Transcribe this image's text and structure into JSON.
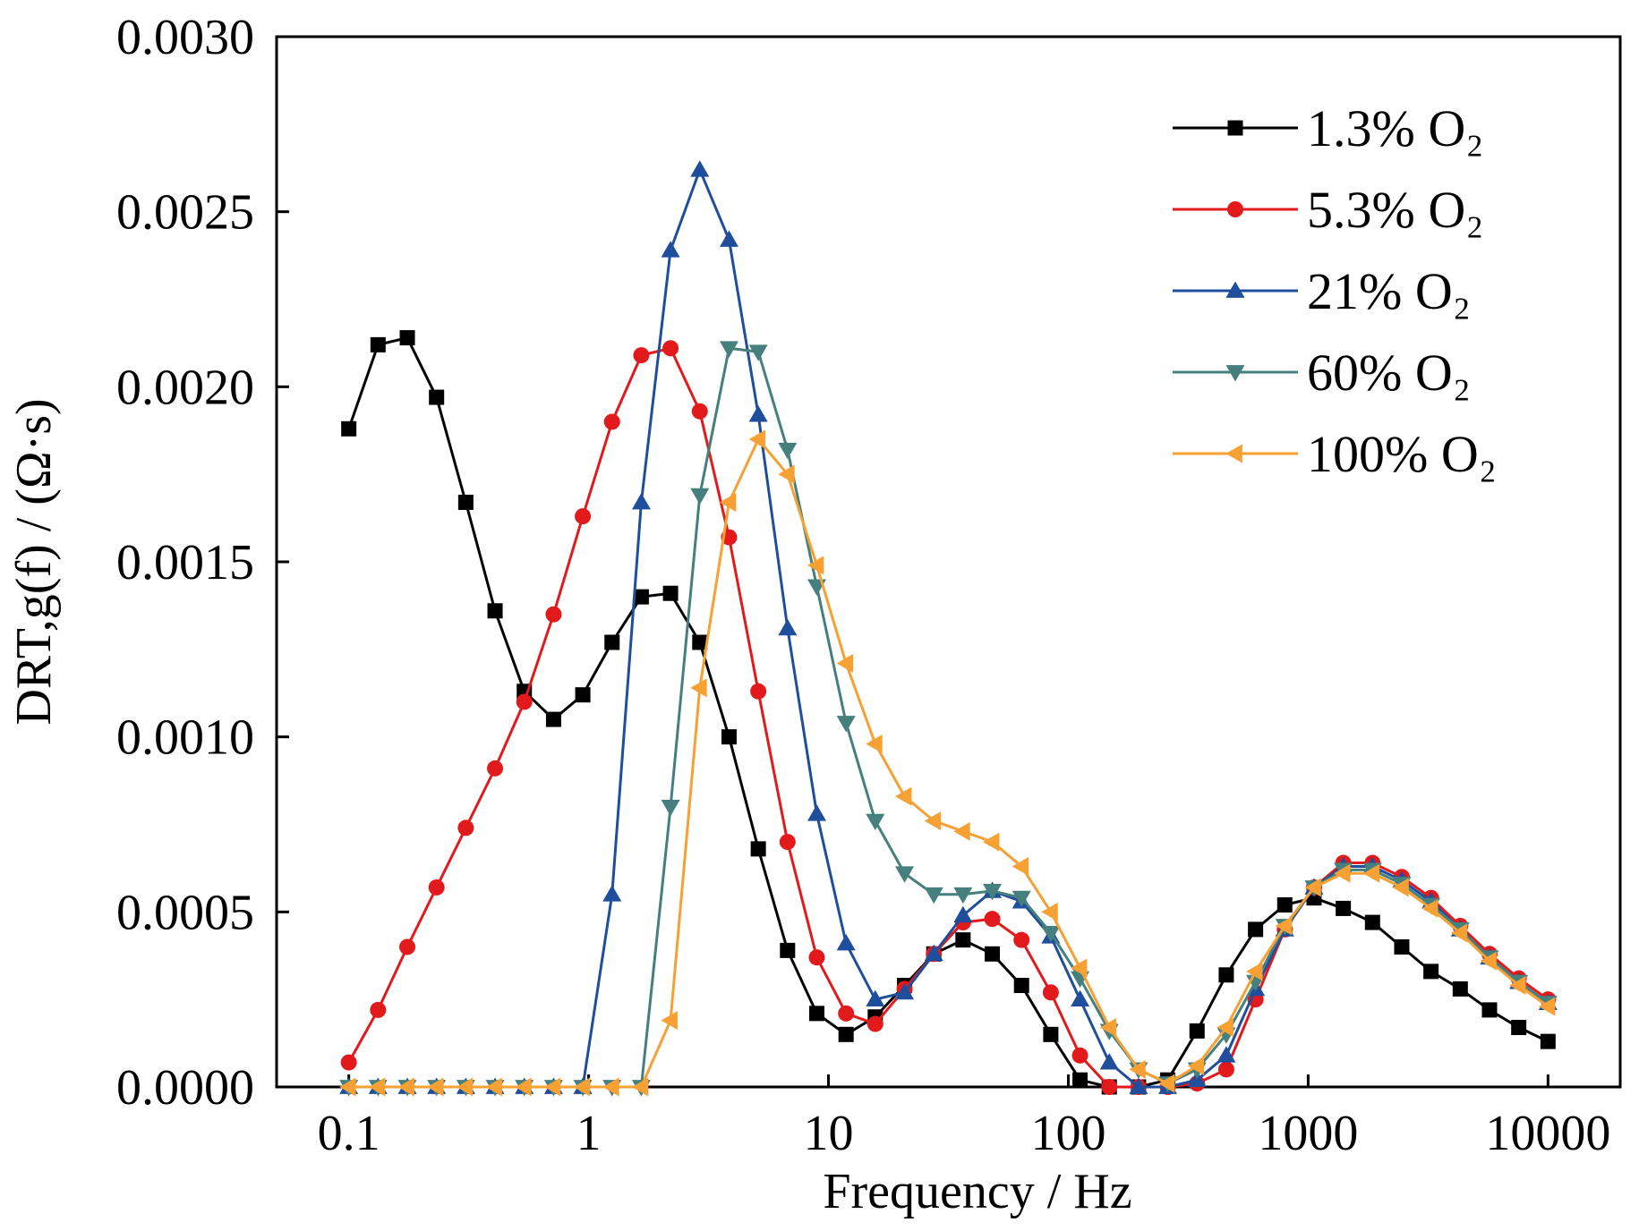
{
  "chart_data": {
    "type": "line",
    "xlabel": "Frequency / Hz",
    "ylabel": "DRT,g(f) / (Ω·s)",
    "xscale": "log",
    "xlim": [
      0.05,
      20000
    ],
    "xticks": [
      0.1,
      1,
      10,
      100,
      1000,
      10000
    ],
    "ylim": [
      0,
      0.003
    ],
    "yticks": [
      {
        "value": 0,
        "label": "0.0000"
      },
      {
        "value": 0.0005,
        "label": "0.0005"
      },
      {
        "value": 0.001,
        "label": "0.0010"
      },
      {
        "value": 0.0015,
        "label": "0.0015"
      },
      {
        "value": 0.002,
        "label": "0.0020"
      },
      {
        "value": 0.0025,
        "label": "0.0025"
      },
      {
        "value": 0.003,
        "label": "0.0030"
      }
    ],
    "legend": "upper right",
    "x": [
      0.1,
      0.1324,
      0.1754,
      0.2322,
      0.3075,
      0.4072,
      0.5392,
      0.7142,
      0.9454,
      1.252,
      1.658,
      2.195,
      2.907,
      3.85,
      5.098,
      6.751,
      8.939,
      11.84,
      15.67,
      20.76,
      27.49,
      36.39,
      48.19,
      63.82,
      84.52,
      111.9,
      148.2,
      196.2,
      259.8,
      344.1,
      455.6,
      603.4,
      799.0,
      1058,
      1401,
      1855,
      2456,
      3252,
      4307,
      5703,
      7552,
      10000
    ],
    "series": [
      {
        "name": "1.3% O₂",
        "color": "#000000",
        "marker": "square",
        "values": [
          0.00188,
          0.00212,
          0.00214,
          0.00197,
          0.00167,
          0.00136,
          0.00113,
          0.00105,
          0.00112,
          0.00127,
          0.0014,
          0.00141,
          0.00127,
          0.001,
          0.00068,
          0.00039,
          0.00021,
          0.00015,
          0.0002,
          0.00029,
          0.00038,
          0.00042,
          0.00038,
          0.00029,
          0.00015,
          2e-05,
          0,
          0,
          2e-05,
          0.00016,
          0.00032,
          0.00045,
          0.00052,
          0.00054,
          0.00051,
          0.00047,
          0.0004,
          0.00033,
          0.00028,
          0.00022,
          0.00017,
          0.00013
        ]
      },
      {
        "name": "5.3% O₂",
        "color": "#e31a1c",
        "marker": "circle",
        "values": [
          7e-05,
          0.00022,
          0.0004,
          0.00057,
          0.00074,
          0.00091,
          0.0011,
          0.00135,
          0.00163,
          0.0019,
          0.00209,
          0.00211,
          0.00193,
          0.00157,
          0.00113,
          0.0007,
          0.00037,
          0.00021,
          0.00018,
          0.00028,
          0.00038,
          0.00047,
          0.00048,
          0.00042,
          0.00027,
          9e-05,
          0,
          0,
          0,
          1e-05,
          5e-05,
          0.00025,
          0.00045,
          0.00057,
          0.00064,
          0.00064,
          0.0006,
          0.00054,
          0.00046,
          0.00038,
          0.00031,
          0.00025
        ]
      },
      {
        "name": "21% O₂",
        "color": "#1f4e9c",
        "marker": "triangle-up",
        "values": [
          0,
          0,
          0,
          0,
          0,
          0,
          0,
          0,
          0,
          0.00055,
          0.00167,
          0.00239,
          0.00262,
          0.00242,
          0.00192,
          0.00131,
          0.00078,
          0.00041,
          0.00025,
          0.00027,
          0.00038,
          0.00049,
          0.00056,
          0.00053,
          0.00043,
          0.00025,
          7e-05,
          0,
          0,
          2e-05,
          9e-05,
          0.00028,
          0.00045,
          0.00057,
          0.00063,
          0.00063,
          0.00059,
          0.00053,
          0.00045,
          0.00037,
          0.0003,
          0.00024
        ]
      },
      {
        "name": "60% O₂",
        "color": "#45807e",
        "marker": "triangle-down",
        "values": [
          0,
          0,
          0,
          0,
          0,
          0,
          0,
          0,
          0,
          0,
          0,
          0.0008,
          0.00169,
          0.00211,
          0.0021,
          0.00182,
          0.00143,
          0.00104,
          0.00076,
          0.00061,
          0.00055,
          0.00055,
          0.00056,
          0.00054,
          0.00044,
          0.00031,
          0.00016,
          5e-05,
          1e-05,
          5e-05,
          0.00015,
          0.0003,
          0.00046,
          0.00057,
          0.00062,
          0.00062,
          0.00058,
          0.00052,
          0.00045,
          0.00037,
          0.0003,
          0.00024
        ]
      },
      {
        "name": "100% O₂",
        "color": "#f7a033",
        "marker": "triangle-left",
        "values": [
          0,
          0,
          0,
          0,
          0,
          0,
          0,
          0,
          0,
          0,
          0,
          0.00019,
          0.00114,
          0.00167,
          0.00185,
          0.00175,
          0.00149,
          0.00121,
          0.00098,
          0.00083,
          0.00076,
          0.00073,
          0.0007,
          0.00063,
          0.0005,
          0.00034,
          0.00017,
          5e-05,
          1e-05,
          6e-05,
          0.00017,
          0.00033,
          0.00046,
          0.00057,
          0.00061,
          0.00061,
          0.00057,
          0.00051,
          0.00044,
          0.00036,
          0.00029,
          0.00023
        ]
      }
    ]
  }
}
